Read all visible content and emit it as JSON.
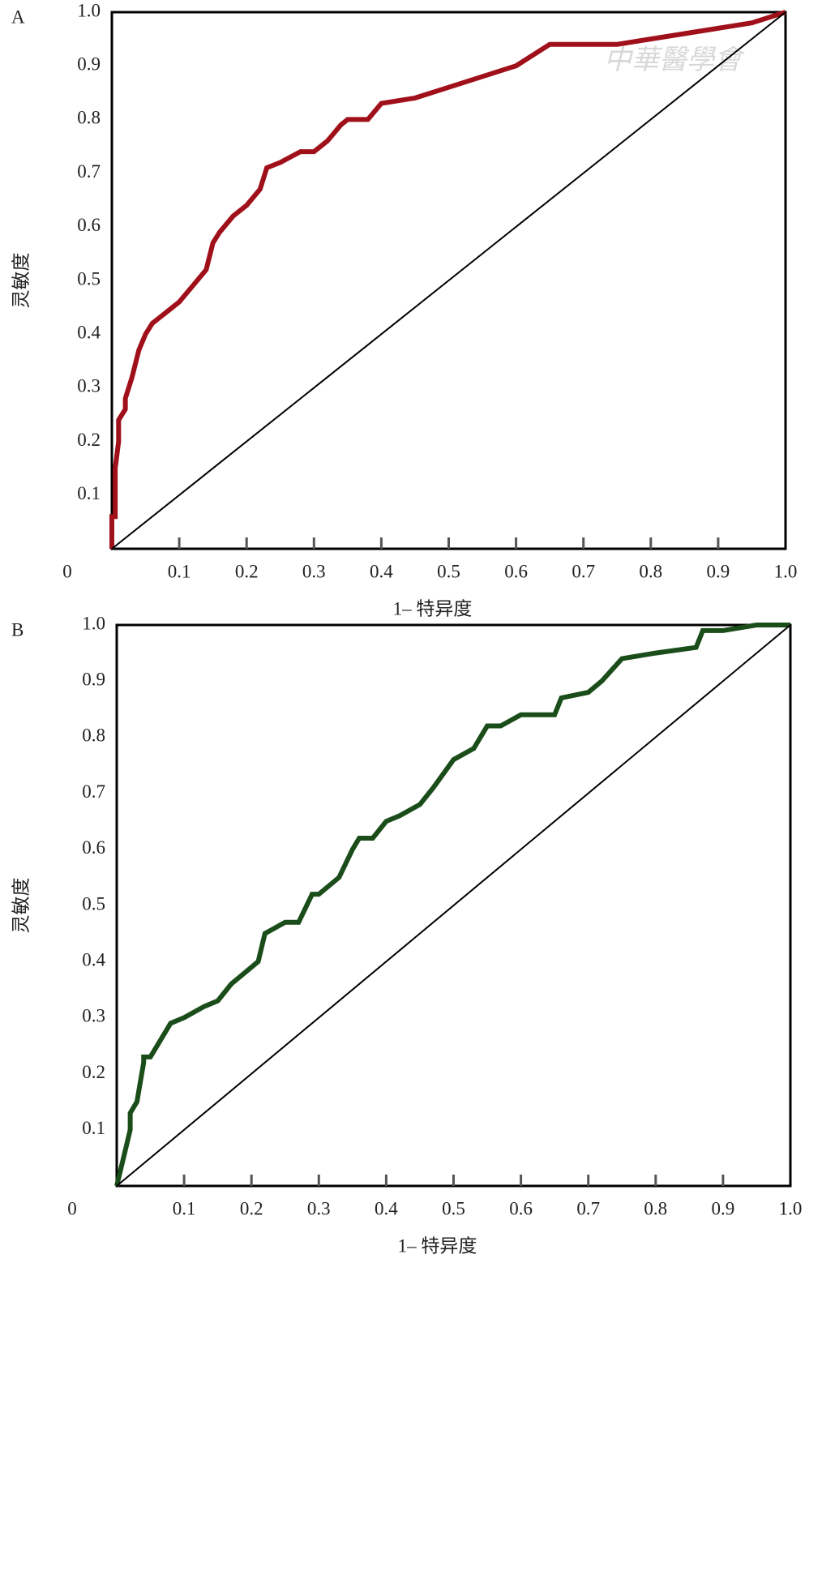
{
  "chart_data": [
    {
      "type": "line",
      "panel_label": "A",
      "xlabel": "1– 特异度",
      "ylabel": "灵敏度",
      "watermark": "中華醫學會",
      "xlim": [
        0,
        1
      ],
      "ylim": [
        0,
        1
      ],
      "grid": false,
      "xticks": [
        0,
        0.1,
        0.2,
        0.3,
        0.4,
        0.5,
        0.6,
        0.7,
        0.8,
        0.9,
        {
          "value": 1,
          "label": "1.0"
        }
      ],
      "yticks": [
        0.1,
        0.2,
        0.3,
        0.4,
        0.5,
        0.6,
        0.7,
        0.8,
        0.9,
        {
          "value": 1,
          "label": "1.0"
        }
      ],
      "series": [
        {
          "color": "#a0101a",
          "x": [
            0,
            0,
            0.005,
            0.005,
            0.01,
            0.01,
            0.02,
            0.02,
            0.03,
            0.04,
            0.05,
            0.06,
            0.07,
            0.08,
            0.1,
            0.12,
            0.14,
            0.15,
            0.16,
            0.18,
            0.2,
            0.22,
            0.23,
            0.25,
            0.28,
            0.3,
            0.32,
            0.34,
            0.35,
            0.38,
            0.4,
            0.45,
            0.5,
            0.55,
            0.6,
            0.65,
            0.7,
            0.75,
            0.8,
            0.85,
            0.9,
            0.95,
            1.0
          ],
          "values": [
            0,
            0.06,
            0.06,
            0.15,
            0.2,
            0.24,
            0.26,
            0.28,
            0.32,
            0.37,
            0.4,
            0.42,
            0.43,
            0.44,
            0.46,
            0.49,
            0.52,
            0.57,
            0.59,
            0.62,
            0.64,
            0.67,
            0.71,
            0.72,
            0.74,
            0.74,
            0.76,
            0.79,
            0.8,
            0.8,
            0.83,
            0.84,
            0.86,
            0.88,
            0.9,
            0.94,
            0.94,
            0.94,
            0.95,
            0.96,
            0.97,
            0.98,
            1.0
          ]
        },
        {
          "color": "#000000",
          "x": [
            0,
            1
          ],
          "values": [
            0,
            1
          ]
        }
      ]
    },
    {
      "type": "line",
      "panel_label": "B",
      "xlabel": "1– 特异度",
      "ylabel": "灵敏度",
      "xlim": [
        0,
        1
      ],
      "ylim": [
        0,
        1
      ],
      "grid": false,
      "xticks": [
        0,
        0.1,
        0.2,
        0.3,
        0.4,
        0.5,
        0.6,
        0.7,
        0.8,
        0.9,
        {
          "value": 1,
          "label": "1.0"
        }
      ],
      "yticks": [
        0.1,
        0.2,
        0.3,
        0.4,
        0.5,
        0.6,
        0.7,
        0.8,
        0.9,
        {
          "value": 1,
          "label": "1.0"
        }
      ],
      "series": [
        {
          "color": "#1a4d1a",
          "x": [
            0,
            0.01,
            0.02,
            0.02,
            0.03,
            0.04,
            0.04,
            0.05,
            0.07,
            0.08,
            0.1,
            0.13,
            0.15,
            0.17,
            0.19,
            0.21,
            0.22,
            0.25,
            0.27,
            0.29,
            0.3,
            0.33,
            0.35,
            0.36,
            0.38,
            0.4,
            0.42,
            0.45,
            0.47,
            0.5,
            0.53,
            0.55,
            0.57,
            0.6,
            0.65,
            0.66,
            0.7,
            0.72,
            0.75,
            0.8,
            0.86,
            0.87,
            0.9,
            0.95,
            1.0
          ],
          "values": [
            0,
            0.05,
            0.1,
            0.13,
            0.15,
            0.22,
            0.23,
            0.23,
            0.27,
            0.29,
            0.3,
            0.32,
            0.33,
            0.36,
            0.38,
            0.4,
            0.45,
            0.47,
            0.47,
            0.52,
            0.52,
            0.55,
            0.6,
            0.62,
            0.62,
            0.65,
            0.66,
            0.68,
            0.71,
            0.76,
            0.78,
            0.82,
            0.82,
            0.84,
            0.84,
            0.87,
            0.88,
            0.9,
            0.94,
            0.95,
            0.96,
            0.99,
            0.99,
            1.0,
            1.0
          ]
        },
        {
          "color": "#000000",
          "x": [
            0,
            1
          ],
          "values": [
            0,
            1
          ]
        }
      ]
    }
  ]
}
